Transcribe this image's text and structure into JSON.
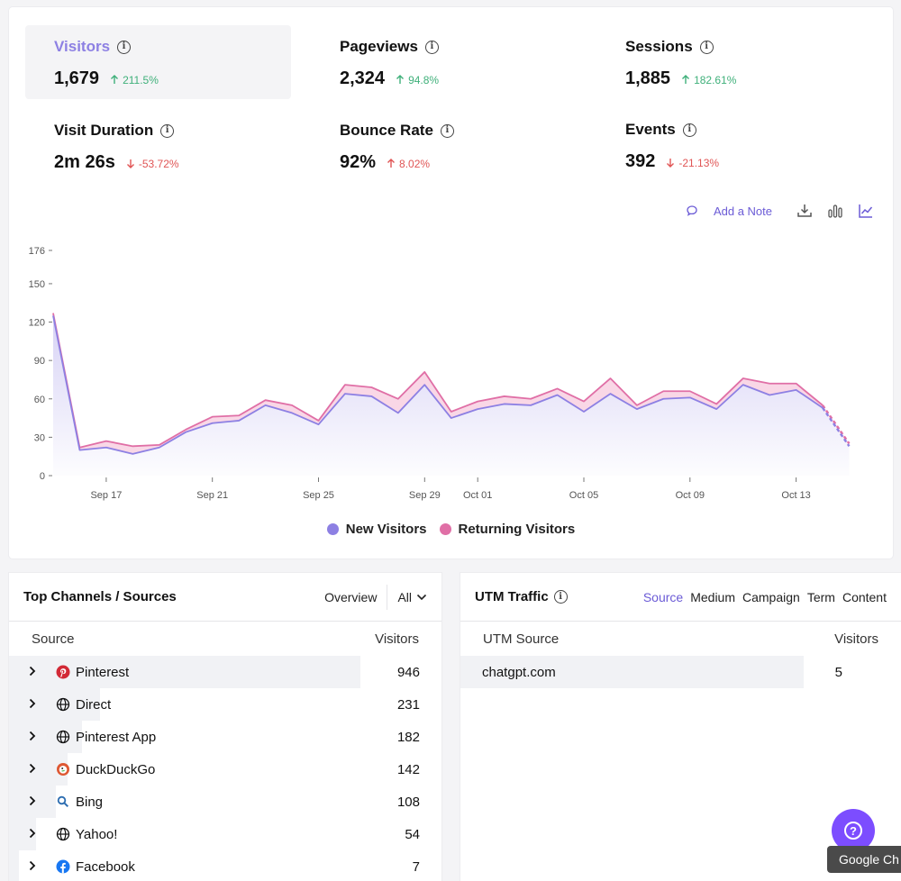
{
  "metrics": [
    {
      "label": "Visitors",
      "value": "1,679",
      "change": "211.5%",
      "dir": "up",
      "active": true
    },
    {
      "label": "Pageviews",
      "value": "2,324",
      "change": "94.8%",
      "dir": "up"
    },
    {
      "label": "Sessions",
      "value": "1,885",
      "change": "182.61%",
      "dir": "up"
    },
    {
      "label": "Visit Duration",
      "value": "2m 26s",
      "change": "-53.72%",
      "dir": "down"
    },
    {
      "label": "Bounce Rate",
      "value": "92%",
      "change": "8.02%",
      "dir": "up-bad"
    },
    {
      "label": "Events",
      "value": "392",
      "change": "-21.13%",
      "dir": "down"
    }
  ],
  "toolbar": {
    "add_note": "Add a Note",
    "icons": [
      "comment-icon",
      "download-icon",
      "bar-chart-icon",
      "line-chart-icon"
    ]
  },
  "colors": {
    "accent": "#6b5bd6",
    "new_visitors": "#8d80e3",
    "returning_visitors": "#e06fa6",
    "up": "#3fb07a",
    "down": "#e05555"
  },
  "chart_data": {
    "type": "area",
    "y_ticks": [
      "0",
      "30",
      "60",
      "90",
      "120",
      "150",
      "176"
    ],
    "ylim": [
      0,
      176
    ],
    "x_tick_labels": [
      "Sep 17",
      "Sep 21",
      "Sep 25",
      "Sep 29",
      "Oct 01",
      "Oct 05",
      "Oct 09",
      "Oct 13"
    ],
    "x_tick_days": [
      2,
      6,
      10,
      14,
      16,
      20,
      24,
      28
    ],
    "stacked": true,
    "dashed_from_index": 29,
    "series": [
      {
        "name": "New Visitors",
        "color": "#8d80e3",
        "values": [
          125,
          20,
          22,
          17,
          22,
          34,
          41,
          43,
          55,
          49,
          40,
          64,
          62,
          49,
          71,
          45,
          52,
          56,
          55,
          63,
          50,
          64,
          52,
          60,
          61,
          52,
          71,
          63,
          67,
          53,
          23
        ]
      },
      {
        "name": "Returning Visitors",
        "color": "#e06fa6",
        "values": [
          2,
          2,
          5,
          6,
          2,
          2,
          5,
          4,
          4,
          6,
          3,
          7,
          7,
          11,
          10,
          5,
          6,
          6,
          5,
          5,
          8,
          12,
          3,
          6,
          5,
          4,
          5,
          9,
          5,
          2,
          2
        ]
      }
    ],
    "legend": [
      "New Visitors",
      "Returning Visitors"
    ],
    "legend_position": "bottom-center",
    "grid": false
  },
  "channels": {
    "title": "Top Channels / Sources",
    "overview_label": "Overview",
    "filter_label": "All",
    "col_source": "Source",
    "col_visitors": "Visitors",
    "rows": [
      {
        "label": "Pinterest",
        "value": "946",
        "icon": "pinterest-icon",
        "share": 1.0
      },
      {
        "label": "Direct",
        "value": "231",
        "icon": "globe-icon",
        "share": 0.244
      },
      {
        "label": "Pinterest App",
        "value": "182",
        "icon": "globe-icon",
        "share": 0.192
      },
      {
        "label": "DuckDuckGo",
        "value": "142",
        "icon": "duckduckgo-icon",
        "share": 0.15
      },
      {
        "label": "Bing",
        "value": "108",
        "icon": "bing-search-icon",
        "share": 0.114
      },
      {
        "label": "Yahoo!",
        "value": "54",
        "icon": "globe-icon",
        "share": 0.057
      },
      {
        "label": "Facebook",
        "value": "7",
        "icon": "facebook-icon",
        "share": 0.007
      }
    ]
  },
  "utm": {
    "title": "UTM Traffic",
    "tabs": [
      "Source",
      "Medium",
      "Campaign",
      "Term",
      "Content"
    ],
    "active_tab": "Source",
    "col_source": "UTM Source",
    "col_visitors": "Visitors",
    "rows": [
      {
        "label": "chatgpt.com",
        "value": "5",
        "share": 1.0
      }
    ]
  },
  "tooltip": "Google Ch"
}
